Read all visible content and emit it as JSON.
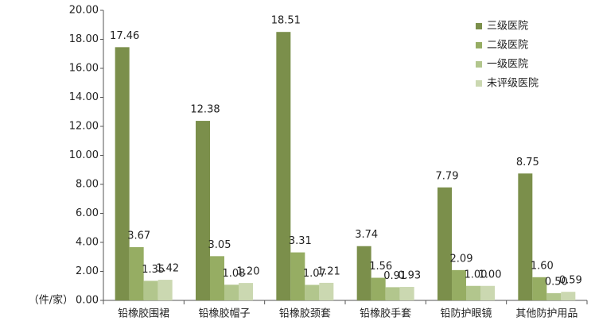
{
  "chart_data": {
    "type": "bar",
    "y_label": "（件/家）",
    "categories": [
      "铅橡胶围裙",
      "铅橡胶帽子",
      "铅橡胶颈套",
      "铅橡胶手套",
      "铅防护眼镜",
      "其他防护用品"
    ],
    "series": [
      {
        "name": "三级医院",
        "color": "#7b8f4b",
        "values": [
          17.46,
          12.38,
          18.51,
          3.74,
          7.79,
          8.75
        ],
        "value_labels": [
          "17.46",
          "12.38",
          "18.51",
          "3.74",
          "7.79",
          "8.75"
        ]
      },
      {
        "name": "二级医院",
        "color": "#96ad63",
        "values": [
          3.67,
          3.05,
          3.31,
          1.56,
          2.09,
          1.6
        ],
        "value_labels": [
          "3.67",
          "3.05",
          "3.31",
          "1.56",
          "2.09",
          "1.60"
        ]
      },
      {
        "name": "一级医院",
        "color": "#b2c68d",
        "values": [
          1.35,
          1.08,
          1.07,
          0.91,
          1.0,
          0.5
        ],
        "value_labels": [
          "1.35",
          "1.08",
          "1.07",
          "0.91",
          "1.00",
          "0.50"
        ]
      },
      {
        "name": "未评级医院",
        "color": "#cbd8b1",
        "values": [
          1.42,
          1.2,
          1.21,
          0.93,
          1.0,
          0.59
        ],
        "value_labels": [
          "1.42",
          "1.20",
          "1.21",
          "0.93",
          "1.00",
          "0.59"
        ]
      }
    ],
    "ylim": [
      0,
      20
    ],
    "yticks": [
      {
        "value": 0,
        "label": "0.00"
      },
      {
        "value": 2,
        "label": "2.00"
      },
      {
        "value": 4,
        "label": "4.00"
      },
      {
        "value": 6,
        "label": "6.00"
      },
      {
        "value": 8,
        "label": "8.00"
      },
      {
        "value": 10,
        "label": "10.00"
      },
      {
        "value": 12,
        "label": "12.00"
      },
      {
        "value": 14,
        "label": "14.00"
      },
      {
        "value": 16,
        "label": "16.00"
      },
      {
        "value": 18,
        "label": "18.00"
      },
      {
        "value": 20,
        "label": "20.00"
      }
    ],
    "legend": "top-right"
  }
}
